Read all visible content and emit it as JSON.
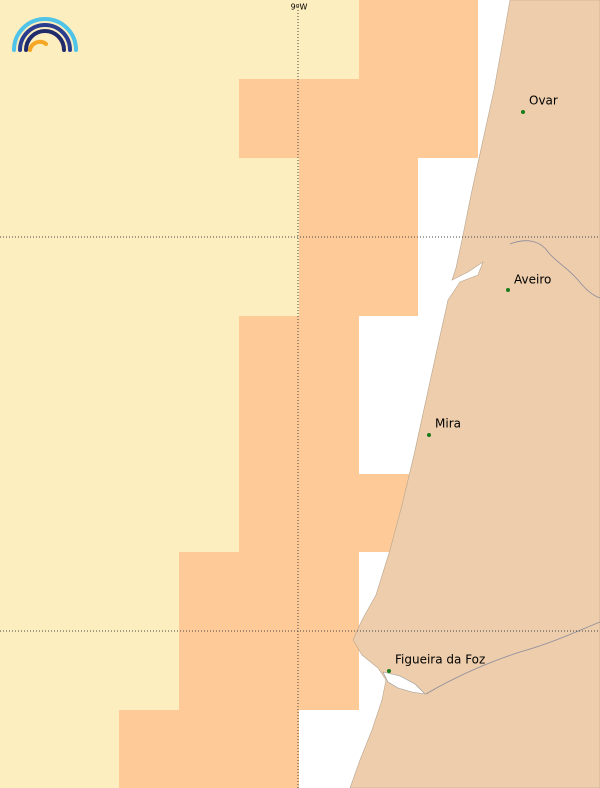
{
  "graticule_label": "9ºW",
  "places": [
    "Ovar",
    "Aveiro",
    "Mira",
    "Figueira da Foz"
  ]
}
